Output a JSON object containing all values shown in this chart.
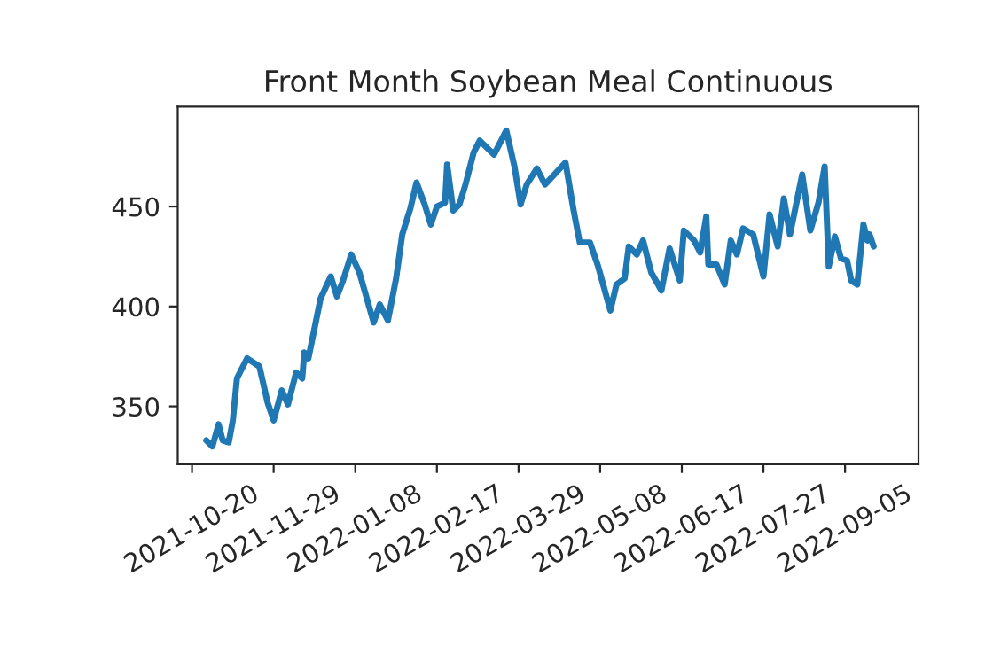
{
  "chart_data": {
    "type": "line",
    "title": "Front Month Soybean Meal Continuous",
    "x": [
      "2021-10-27",
      "2021-10-30",
      "2021-11-02",
      "2021-11-04",
      "2021-11-07",
      "2021-11-09",
      "2021-11-11",
      "2021-11-16",
      "2021-11-22",
      "2021-11-26",
      "2021-11-29",
      "2021-12-03",
      "2021-12-06",
      "2021-12-10",
      "2021-12-13",
      "2021-12-14",
      "2021-12-16",
      "2021-12-22",
      "2021-12-27",
      "2021-12-30",
      "2022-01-02",
      "2022-01-06",
      "2022-01-10",
      "2022-01-17",
      "2022-01-20",
      "2022-01-24",
      "2022-01-28",
      "2022-01-31",
      "2022-02-04",
      "2022-02-07",
      "2022-02-11",
      "2022-02-14",
      "2022-02-17",
      "2022-02-21",
      "2022-02-22",
      "2022-02-25",
      "2022-02-28",
      "2022-03-03",
      "2022-03-07",
      "2022-03-10",
      "2022-03-14",
      "2022-03-17",
      "2022-03-23",
      "2022-03-27",
      "2022-03-30",
      "2022-04-02",
      "2022-04-07",
      "2022-04-11",
      "2022-04-21",
      "2022-04-25",
      "2022-04-28",
      "2022-05-03",
      "2022-05-07",
      "2022-05-13",
      "2022-05-16",
      "2022-05-20",
      "2022-05-22",
      "2022-05-26",
      "2022-05-29",
      "2022-06-02",
      "2022-06-07",
      "2022-06-11",
      "2022-06-16",
      "2022-06-18",
      "2022-06-23",
      "2022-06-26",
      "2022-06-29",
      "2022-06-30",
      "2022-07-04",
      "2022-07-08",
      "2022-07-11",
      "2022-07-14",
      "2022-07-17",
      "2022-07-22",
      "2022-07-27",
      "2022-07-30",
      "2022-08-03",
      "2022-08-06",
      "2022-08-09",
      "2022-08-15",
      "2022-08-19",
      "2022-08-23",
      "2022-08-26",
      "2022-08-28",
      "2022-08-31",
      "2022-09-03",
      "2022-09-06",
      "2022-09-08",
      "2022-09-11",
      "2022-09-14",
      "2022-09-16",
      "2022-09-17",
      "2022-09-19"
    ],
    "series": [
      {
        "color": "#1f77b4",
        "values": [
          333,
          330,
          341,
          333,
          332,
          343,
          364,
          374,
          370,
          352,
          343,
          358,
          351,
          367,
          364,
          377,
          374,
          404,
          415,
          405,
          413,
          426,
          417,
          392,
          401,
          393,
          414,
          436,
          449,
          462,
          451,
          441,
          450,
          452,
          471,
          448,
          451,
          461,
          477,
          483,
          479,
          476,
          488,
          470,
          451,
          461,
          469,
          461,
          472,
          448,
          432,
          432,
          420,
          398,
          411,
          414,
          430,
          426,
          433,
          417,
          408,
          429,
          413,
          438,
          433,
          427,
          445,
          421,
          421,
          411,
          433,
          426,
          439,
          436,
          415,
          446,
          430,
          454,
          436,
          466,
          438,
          452,
          470,
          420,
          435,
          424,
          423,
          413,
          411,
          441,
          433,
          436,
          430
        ]
      }
    ],
    "xlim": [
      "2021-10-13",
      "2022-10-11"
    ],
    "xticks": [
      "2021-10-20",
      "2021-11-29",
      "2022-01-08",
      "2022-02-17",
      "2022-03-29",
      "2022-05-08",
      "2022-06-17",
      "2022-07-27",
      "2022-09-05"
    ],
    "ylim": [
      321,
      500
    ],
    "yticks": [
      350,
      400,
      450
    ],
    "grid": false,
    "marker": "none",
    "line_style": "solid"
  }
}
